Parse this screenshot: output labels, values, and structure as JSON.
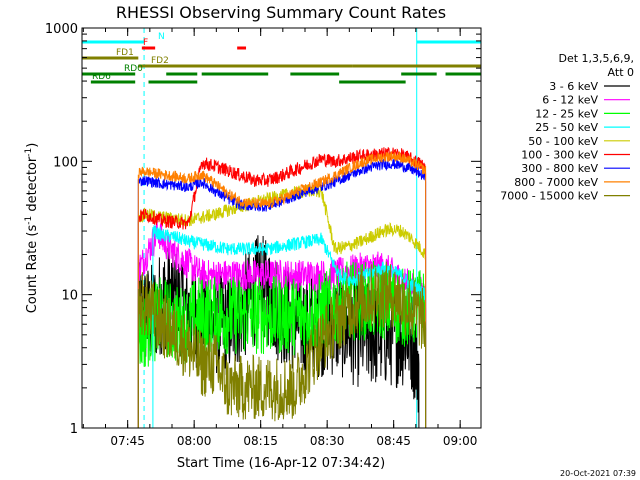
{
  "chart_data": {
    "type": "line",
    "title": "RHESSI Observing Summary Count Rates",
    "xlabel": "Start Time (16-Apr-12 07:34:42)",
    "ylabel_main": "Count Rate (s",
    "ylabel_sup": "-1",
    "ylabel_mid": " detector",
    "ylabel_end": ")",
    "x_unit": "minutes since 07:34:42",
    "x_range": [
      0,
      90
    ],
    "y_scale": "log",
    "ylim": [
      1,
      1000
    ],
    "x_ticks": [
      {
        "t": 10.3,
        "label": "07:45"
      },
      {
        "t": 25.3,
        "label": "08:00"
      },
      {
        "t": 40.3,
        "label": "08:15"
      },
      {
        "t": 55.3,
        "label": "08:30"
      },
      {
        "t": 70.3,
        "label": "08:45"
      },
      {
        "t": 85.3,
        "label": "09:00"
      }
    ],
    "y_ticks": [
      {
        "v": 1,
        "label": "1"
      },
      {
        "v": 10,
        "label": "10"
      },
      {
        "v": 100,
        "label": "100"
      },
      {
        "v": 1000,
        "label": "1000"
      }
    ],
    "legend_header": [
      "Det 1,3,5,6,9,",
      "Att 0"
    ],
    "legend_placement": "right",
    "series": [
      {
        "name": "3 - 6 keV",
        "color": "#000000",
        "noise": 0.4,
        "points": [
          [
            12.7,
            7
          ],
          [
            16,
            7
          ],
          [
            18,
            9
          ],
          [
            20,
            10
          ],
          [
            23,
            8
          ],
          [
            25,
            7
          ],
          [
            28,
            7
          ],
          [
            30,
            6
          ],
          [
            33,
            6
          ],
          [
            35,
            7
          ],
          [
            38,
            9
          ],
          [
            40,
            12
          ],
          [
            42,
            10
          ],
          [
            44,
            8
          ],
          [
            46,
            7
          ],
          [
            50,
            6
          ],
          [
            54,
            6
          ],
          [
            58,
            6
          ],
          [
            62,
            5
          ],
          [
            66,
            5
          ],
          [
            70,
            5
          ],
          [
            74,
            5
          ],
          [
            76,
            3
          ]
        ]
      },
      {
        "name": "6 - 12 keV",
        "color": "#ff00ff",
        "noise": 0.12,
        "points": [
          [
            12.7,
            16
          ],
          [
            13.5,
            17
          ],
          [
            16,
            25
          ],
          [
            17.2,
            30
          ],
          [
            18,
            26
          ],
          [
            21,
            20
          ],
          [
            24,
            17
          ],
          [
            27,
            14
          ],
          [
            30,
            14
          ],
          [
            33,
            14
          ],
          [
            36,
            14
          ],
          [
            40,
            14
          ],
          [
            44,
            14
          ],
          [
            48,
            14
          ],
          [
            52,
            14
          ],
          [
            56,
            14
          ],
          [
            60,
            15
          ],
          [
            64,
            16
          ],
          [
            68,
            16
          ],
          [
            72,
            13
          ],
          [
            75,
            11
          ],
          [
            77.5,
            10
          ]
        ]
      },
      {
        "name": "12 - 25 keV",
        "color": "#00ff00",
        "noise": 0.3,
        "points": [
          [
            12.7,
            5
          ],
          [
            16,
            6
          ],
          [
            18,
            7
          ],
          [
            21,
            6
          ],
          [
            24,
            6
          ],
          [
            26,
            7
          ],
          [
            30,
            7
          ],
          [
            33,
            7
          ],
          [
            36,
            7
          ],
          [
            40,
            7
          ],
          [
            44,
            7
          ],
          [
            48,
            7
          ],
          [
            52,
            7
          ],
          [
            56,
            8
          ],
          [
            60,
            9
          ],
          [
            64,
            9
          ],
          [
            68,
            9
          ],
          [
            72,
            8
          ],
          [
            75,
            8
          ],
          [
            77.5,
            8
          ]
        ]
      },
      {
        "name": "25 - 50 keV",
        "color": "#00ffff",
        "noise": 0.05,
        "points": [
          [
            16,
            30
          ],
          [
            18,
            28
          ],
          [
            21,
            27
          ],
          [
            24,
            25
          ],
          [
            27,
            24
          ],
          [
            30,
            23
          ],
          [
            33,
            22
          ],
          [
            36,
            22
          ],
          [
            39,
            22
          ],
          [
            42,
            22
          ],
          [
            45,
            23
          ],
          [
            48,
            24
          ],
          [
            51,
            25
          ],
          [
            54,
            26
          ],
          [
            58,
            14
          ],
          [
            60,
            13
          ],
          [
            62,
            13
          ],
          [
            64,
            14
          ],
          [
            66,
            15
          ],
          [
            68,
            16
          ],
          [
            70,
            15
          ],
          [
            72,
            14
          ],
          [
            74,
            12
          ],
          [
            76,
            11
          ],
          [
            77.5,
            10
          ]
        ]
      },
      {
        "name": "50 - 100 keV",
        "color": "#cccc00",
        "noise": 0.05,
        "points": [
          [
            12.7,
            38
          ],
          [
            14,
            40
          ],
          [
            16,
            39
          ],
          [
            18,
            38
          ],
          [
            21,
            37
          ],
          [
            24,
            36
          ],
          [
            27,
            38
          ],
          [
            30,
            40
          ],
          [
            33,
            43
          ],
          [
            36,
            46
          ],
          [
            39,
            49
          ],
          [
            42,
            52
          ],
          [
            45,
            55
          ],
          [
            48,
            58
          ],
          [
            51,
            60
          ],
          [
            54,
            60
          ],
          [
            57,
            22
          ],
          [
            60,
            23
          ],
          [
            63,
            25
          ],
          [
            66,
            28
          ],
          [
            68,
            30
          ],
          [
            70,
            31
          ],
          [
            72,
            30
          ],
          [
            74,
            27
          ],
          [
            76,
            23
          ],
          [
            77.5,
            20
          ]
        ]
      },
      {
        "name": "100 - 300 keV",
        "color": "#ff0000",
        "noise": 0.05,
        "points": [
          [
            12.7,
            38
          ],
          [
            14,
            40
          ],
          [
            16,
            38
          ],
          [
            18,
            36
          ],
          [
            21,
            35
          ],
          [
            24,
            34
          ],
          [
            27,
            98
          ],
          [
            30,
            92
          ],
          [
            33,
            85
          ],
          [
            36,
            78
          ],
          [
            39,
            72
          ],
          [
            42,
            72
          ],
          [
            45,
            78
          ],
          [
            48,
            86
          ],
          [
            51,
            95
          ],
          [
            54,
            104
          ],
          [
            57,
            100
          ],
          [
            60,
            105
          ],
          [
            63,
            110
          ],
          [
            66,
            112
          ],
          [
            68,
            114
          ],
          [
            70,
            115
          ],
          [
            72,
            112
          ],
          [
            74,
            105
          ],
          [
            76,
            97
          ],
          [
            77.5,
            90
          ]
        ]
      },
      {
        "name": "300 - 800 keV",
        "color": "#0000ff",
        "noise": 0.04,
        "points": [
          [
            12.7,
            70
          ],
          [
            14,
            72
          ],
          [
            16,
            70
          ],
          [
            18,
            68
          ],
          [
            21,
            66
          ],
          [
            24,
            64
          ],
          [
            27,
            70
          ],
          [
            30,
            60
          ],
          [
            33,
            52
          ],
          [
            36,
            47
          ],
          [
            39,
            46
          ],
          [
            42,
            46
          ],
          [
            45,
            50
          ],
          [
            48,
            55
          ],
          [
            51,
            60
          ],
          [
            54,
            64
          ],
          [
            57,
            70
          ],
          [
            60,
            78
          ],
          [
            63,
            86
          ],
          [
            66,
            92
          ],
          [
            68,
            95
          ],
          [
            70,
            96
          ],
          [
            72,
            93
          ],
          [
            74,
            88
          ],
          [
            76,
            82
          ],
          [
            77.5,
            75
          ]
        ]
      },
      {
        "name": "800 - 7000 keV",
        "color": "#ff8000",
        "noise": 0.04,
        "points": [
          [
            12.7,
            82
          ],
          [
            14,
            84
          ],
          [
            16,
            82
          ],
          [
            18,
            80
          ],
          [
            21,
            77
          ],
          [
            24,
            74
          ],
          [
            27,
            80
          ],
          [
            30,
            68
          ],
          [
            33,
            57
          ],
          [
            36,
            50
          ],
          [
            39,
            48
          ],
          [
            42,
            48
          ],
          [
            45,
            52
          ],
          [
            48,
            58
          ],
          [
            51,
            64
          ],
          [
            54,
            70
          ],
          [
            57,
            78
          ],
          [
            60,
            88
          ],
          [
            63,
            98
          ],
          [
            66,
            105
          ],
          [
            68,
            108
          ],
          [
            70,
            110
          ],
          [
            72,
            107
          ],
          [
            74,
            100
          ],
          [
            76,
            92
          ],
          [
            77.5,
            85
          ]
        ]
      },
      {
        "name": "7000 - 15000 keV",
        "color": "#808000",
        "noise": 0.25,
        "points": [
          [
            12.7,
            9
          ],
          [
            15,
            8
          ],
          [
            18,
            6
          ],
          [
            21,
            5
          ],
          [
            24,
            4
          ],
          [
            27,
            3
          ],
          [
            30,
            3
          ],
          [
            33,
            2
          ],
          [
            36,
            2
          ],
          [
            39,
            2
          ],
          [
            42,
            2
          ],
          [
            45,
            2
          ],
          [
            48,
            2
          ],
          [
            51,
            3
          ],
          [
            53,
            4
          ],
          [
            55,
            5
          ],
          [
            57,
            6
          ],
          [
            60,
            8
          ],
          [
            63,
            9
          ],
          [
            66,
            10
          ],
          [
            68,
            10
          ],
          [
            70,
            10
          ],
          [
            72,
            9
          ],
          [
            74,
            8
          ],
          [
            76,
            7
          ],
          [
            77.5,
            6
          ]
        ]
      }
    ],
    "flags": [
      {
        "label": "N",
        "color": "#00ffff",
        "segments": [
          [
            0,
            14
          ],
          [
            75.5,
            90
          ]
        ]
      },
      {
        "label": "F",
        "color": "#ff0000",
        "segments": [
          [
            13.5,
            16.5
          ],
          [
            35,
            37
          ]
        ]
      },
      {
        "label": "FD1",
        "color": "#808000",
        "segments": [
          [
            0,
            12.7
          ]
        ]
      },
      {
        "label": "FD2",
        "color": "#808000",
        "segments": [
          [
            12.7,
            61
          ],
          [
            61,
            90
          ]
        ]
      },
      {
        "label": "RD0",
        "color": "#008000",
        "segments": [
          [
            0,
            12
          ],
          [
            19,
            26
          ],
          [
            27,
            42
          ],
          [
            47,
            58
          ],
          [
            72,
            80
          ],
          [
            82,
            90
          ]
        ]
      },
      {
        "label": "RD6",
        "color": "#008000",
        "segments": [
          [
            2,
            12
          ],
          [
            15,
            26
          ],
          [
            58,
            73
          ]
        ]
      }
    ],
    "vertical_lines": [
      {
        "t": 0,
        "color": "#00ffff",
        "style": "solid"
      },
      {
        "t": 14,
        "color": "#00ffff",
        "style": "dashed"
      },
      {
        "t": 75.5,
        "color": "#00ffff",
        "style": "solid"
      },
      {
        "t": 90,
        "color": "#00ffff",
        "style": "dashed"
      }
    ]
  },
  "footer": {
    "timestamp": "20-Oct-2021 07:39"
  }
}
